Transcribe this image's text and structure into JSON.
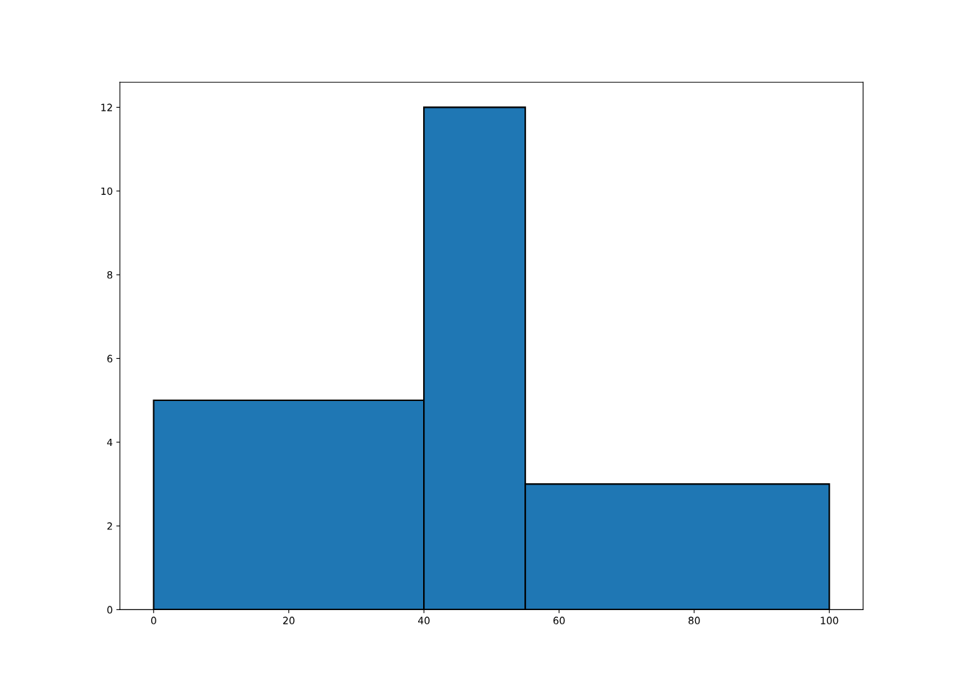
{
  "chart_data": {
    "type": "histogram",
    "bins": [
      0,
      40,
      55,
      100
    ],
    "values": [
      5,
      12,
      3
    ],
    "color": "#1f77b4",
    "xlim": [
      -5,
      105
    ],
    "xticks": [
      0,
      20,
      40,
      60,
      80,
      100
    ],
    "ylim": [
      0,
      12.6
    ],
    "yticks": [
      0,
      2,
      4,
      6,
      8,
      10,
      12
    ],
    "grid": false
  }
}
